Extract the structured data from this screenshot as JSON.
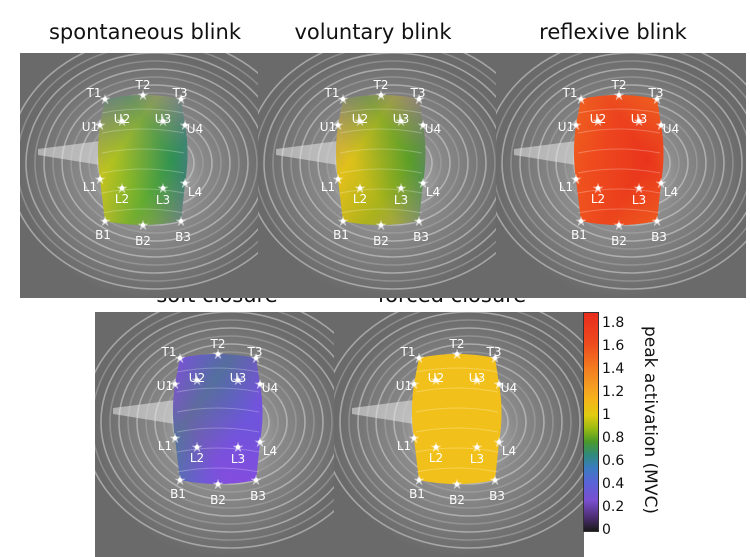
{
  "panels": [
    {
      "title": "spontaneous blink",
      "level": "varied_low"
    },
    {
      "title": "voluntary blink",
      "level": "varied_mid"
    },
    {
      "title": "reflexive blink",
      "level": "high"
    },
    {
      "title": "soft closure",
      "level": "low"
    },
    {
      "title": "forced closure",
      "level": "uniform_one"
    }
  ],
  "electrode_labels": [
    "T1",
    "T2",
    "T3",
    "U1",
    "U2",
    "U3",
    "U4",
    "L1",
    "L2",
    "L3",
    "L4",
    "B1",
    "B2",
    "B3"
  ],
  "colorbar": {
    "label": "peak activation (MVC)",
    "ticks": [
      "0",
      "0.2",
      "0.4",
      "0.6",
      "0.8",
      "1",
      "1.2",
      "1.4",
      "1.6",
      "1.8"
    ],
    "min": 0,
    "max": 1.9
  }
}
